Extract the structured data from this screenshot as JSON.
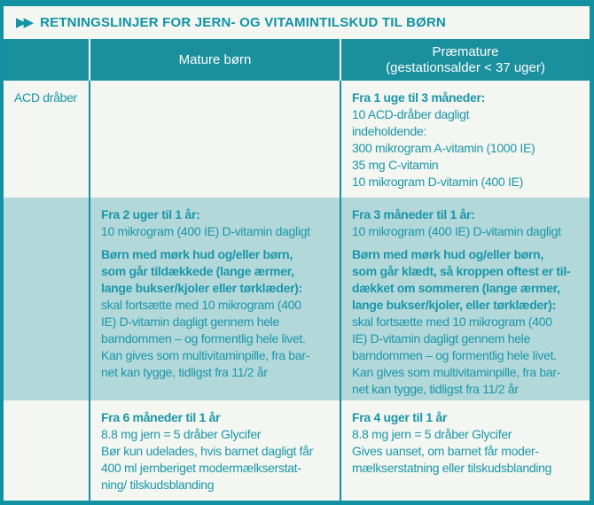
{
  "colors": {
    "accent_teal": "#1291a2",
    "header_bg": "#1a8f9e",
    "header_text": "#ffffff",
    "body_text": "#1b96a8",
    "row_highlight_bg": "#b2d8da",
    "row_light_bg": "#f3f6f1"
  },
  "header": {
    "title_icon": "▶▶",
    "title": "RETNINGSLINJER FOR JERN- OG VITAMINTILSKUD TIL BØRN"
  },
  "table": {
    "columns": {
      "col1_label": "",
      "col2_label": "Mature børn",
      "col3_label_line1": "Præmature",
      "col3_label_line2": "(gestationsalder < 37 uger)"
    },
    "row1": {
      "label": "ACD dråber",
      "mature": "",
      "praemature": {
        "heading": "Fra 1 uge til 3 måneder:",
        "body": "10 ACD-dråber dagligt\nindeholdende:\n300 mikrogram A-vitamin (1000 IE)\n35 mg C-vitamin\n10 mikrogram D-vitamin (400 IE)"
      }
    },
    "row2": {
      "label": "",
      "mature": {
        "p1_heading": "Fra 2 uger til 1 år:",
        "p1_body": "10 mikrogram (400 IE) D-vitamin dagligt",
        "p2_heading": "Børn med mørk hud og/eller børn,\nsom går tildækkede (lange ærmer,\nlange bukser/kjoler eller tørklæder):",
        "p2_body": "skal fortsætte med 10 mikrogram (400\nIE) D-vitamin dagligt gennem hele\nbarndommen – og formentlig hele livet.\nKan gives som multivitaminpille, fra bar-\nnet kan tygge, tidligst fra 11/2 år"
      },
      "praemature": {
        "p1_heading": "Fra 3 måneder til 1 år:",
        "p1_body": "10 mikrogram (400 IE) D-vitamin dagligt",
        "p2_heading": "Børn med mørk hud og/eller børn,\nsom går klædt, så kroppen oftest er til-\ndækket om sommeren (lange ærmer,\nlange bukser/kjoler, eller tørklæder):",
        "p2_body": "skal fortsætte med 10 mikrogram (400\nIE) D-vitamin dagligt gennem hele\nbarndommen – og formentlig hele livet.\nKan gives som multivitaminpille, fra bar-\nnet kan tygge, tidligst fra 11/2 år"
      }
    },
    "row3": {
      "label": "",
      "mature": {
        "heading": "Fra 6 måneder til 1 år",
        "body": "8.8 mg jern = 5 dråber Glycifer\nBør kun udelades, hvis barnet dagligt får\n400 ml jernberiget modermælkserstat-\nning/ tilskudsblanding"
      },
      "praemature": {
        "heading": "Fra 4 uger til 1 år",
        "body": "8.8 mg jern = 5 dråber Glycifer\nGives uanset, om barnet får moder-\nmælkserstatning eller tilskudsblanding"
      }
    }
  }
}
